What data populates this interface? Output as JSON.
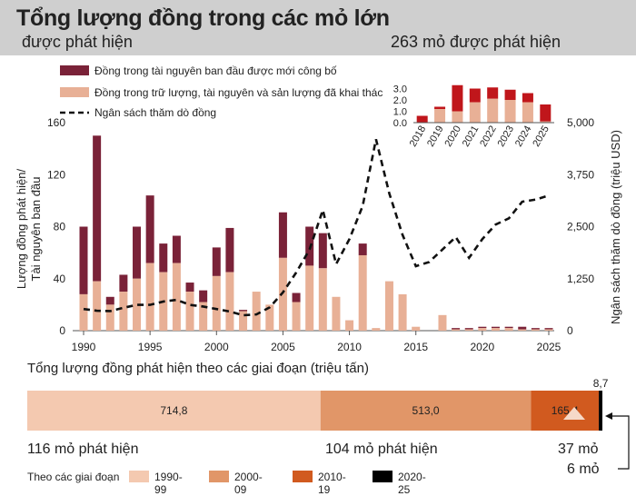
{
  "header": {
    "title": "Tổng lượng đồng trong các mỏ lớn",
    "subtitle": "được phát hiện",
    "mines_title": "263 mỏ được phát hiện"
  },
  "colors": {
    "dark": "#7a2238",
    "light": "#e8b096",
    "inset_dark": "#c0161b",
    "inset_light": "#e8b096",
    "p1990": "#f4c9b0",
    "p2000": "#e19668",
    "p2010": "#d15a1f",
    "p2020": "#000000"
  },
  "chart_data": [
    {
      "type": "bar",
      "legend": {
        "dark": "Đồng trong tài nguyên ban đầu được mới công bố",
        "light": "Đồng trong trữ lượng, tài nguyên và sản lượng đã khai thác",
        "line": "Ngân sách thăm dò đồng"
      },
      "ylabel": "Lượng đồng phát hiện/ Tài nguyên ban đầu",
      "ylabel_lines": [
        "Lượng đồng phát hiện/",
        "Tài nguyên ban đầu"
      ],
      "y2label": "Ngân sách thăm dò đồng (triệu USD)",
      "ylim": [
        0,
        160
      ],
      "y2lim": [
        0,
        5000
      ],
      "yticks": [
        "0",
        "40",
        "80",
        "120",
        "160"
      ],
      "y2ticks": [
        "0",
        "1,250",
        "2,500",
        "3,750",
        "5,000"
      ],
      "xticks": [
        "1990",
        "1995",
        "2000",
        "2005",
        "2010",
        "2015",
        "2020",
        "2025"
      ],
      "years": [
        1990,
        1991,
        1992,
        1993,
        1994,
        1995,
        1996,
        1997,
        1998,
        1999,
        2000,
        2001,
        2002,
        2003,
        2004,
        2005,
        2006,
        2007,
        2008,
        2009,
        2010,
        2011,
        2012,
        2013,
        2014,
        2015,
        2016,
        2017,
        2018,
        2019,
        2020,
        2021,
        2022,
        2023,
        2024,
        2025
      ],
      "light": [
        28,
        38,
        20,
        30,
        40,
        52,
        45,
        52,
        30,
        22,
        42,
        45,
        15,
        30,
        20,
        56,
        22,
        50,
        48,
        26,
        8,
        58,
        2,
        38,
        28,
        3,
        0,
        12,
        1,
        1,
        2,
        2,
        2,
        1,
        1,
        1
      ],
      "total": [
        80,
        150,
        26,
        43,
        80,
        104,
        67,
        73,
        37,
        31,
        64,
        79,
        16,
        30,
        20,
        91,
        29,
        80,
        75,
        26,
        8,
        67,
        2,
        38,
        28,
        3,
        0,
        12,
        2,
        2,
        3,
        3,
        3,
        3,
        2,
        2
      ],
      "line_x": [
        1990,
        1991,
        1992,
        1993,
        1994,
        1995,
        1996,
        1997,
        1998,
        1999,
        2000,
        2001,
        2002,
        2003,
        2004,
        2005,
        2006,
        2007,
        2008,
        2009,
        2010,
        2011,
        2012,
        2013,
        2014,
        2015,
        2016,
        2017,
        2018,
        2019,
        2020,
        2021,
        2022,
        2023,
        2024,
        2025
      ],
      "line_y": [
        520,
        480,
        470,
        550,
        620,
        620,
        700,
        740,
        620,
        580,
        520,
        460,
        370,
        390,
        560,
        920,
        1400,
        1950,
        2900,
        1600,
        2200,
        3000,
        4600,
        3300,
        2300,
        1550,
        1650,
        1950,
        2250,
        1750,
        2200,
        2550,
        2700,
        3100,
        3150,
        3250
      ]
    },
    {
      "type": "bar",
      "title": "263 mỏ được phát hiện",
      "categories": [
        "2018",
        "2019",
        "2020",
        "2021",
        "2022",
        "2023",
        "2024",
        "2025"
      ],
      "light": [
        0.0,
        1.2,
        1.0,
        1.8,
        2.1,
        2.0,
        1.8,
        0.1
      ],
      "total": [
        0.6,
        1.4,
        3.3,
        3.0,
        3.1,
        2.9,
        2.6,
        1.6
      ],
      "ylim": [
        0,
        4.0
      ],
      "yticks": [
        "0.0",
        "1.0",
        "2.0",
        "3.0"
      ]
    },
    {
      "type": "bar",
      "title": "Tổng lượng đồng phát hiện theo các giai đoạn (triệu tấn)",
      "categories": [
        "1990-99",
        "2000-09",
        "2010-19",
        "2020-25"
      ],
      "values": [
        714.8,
        513.0,
        165.4,
        8.7
      ],
      "value_labels": [
        "714,8",
        "513,0",
        "165,4",
        "8,7"
      ],
      "counts": [
        "116 mỏ phát hiện",
        "104 mỏ phát hiện",
        "37 mỏ",
        "6 mỏ"
      ],
      "legend_title": "Theo các giai đoạn"
    }
  ]
}
